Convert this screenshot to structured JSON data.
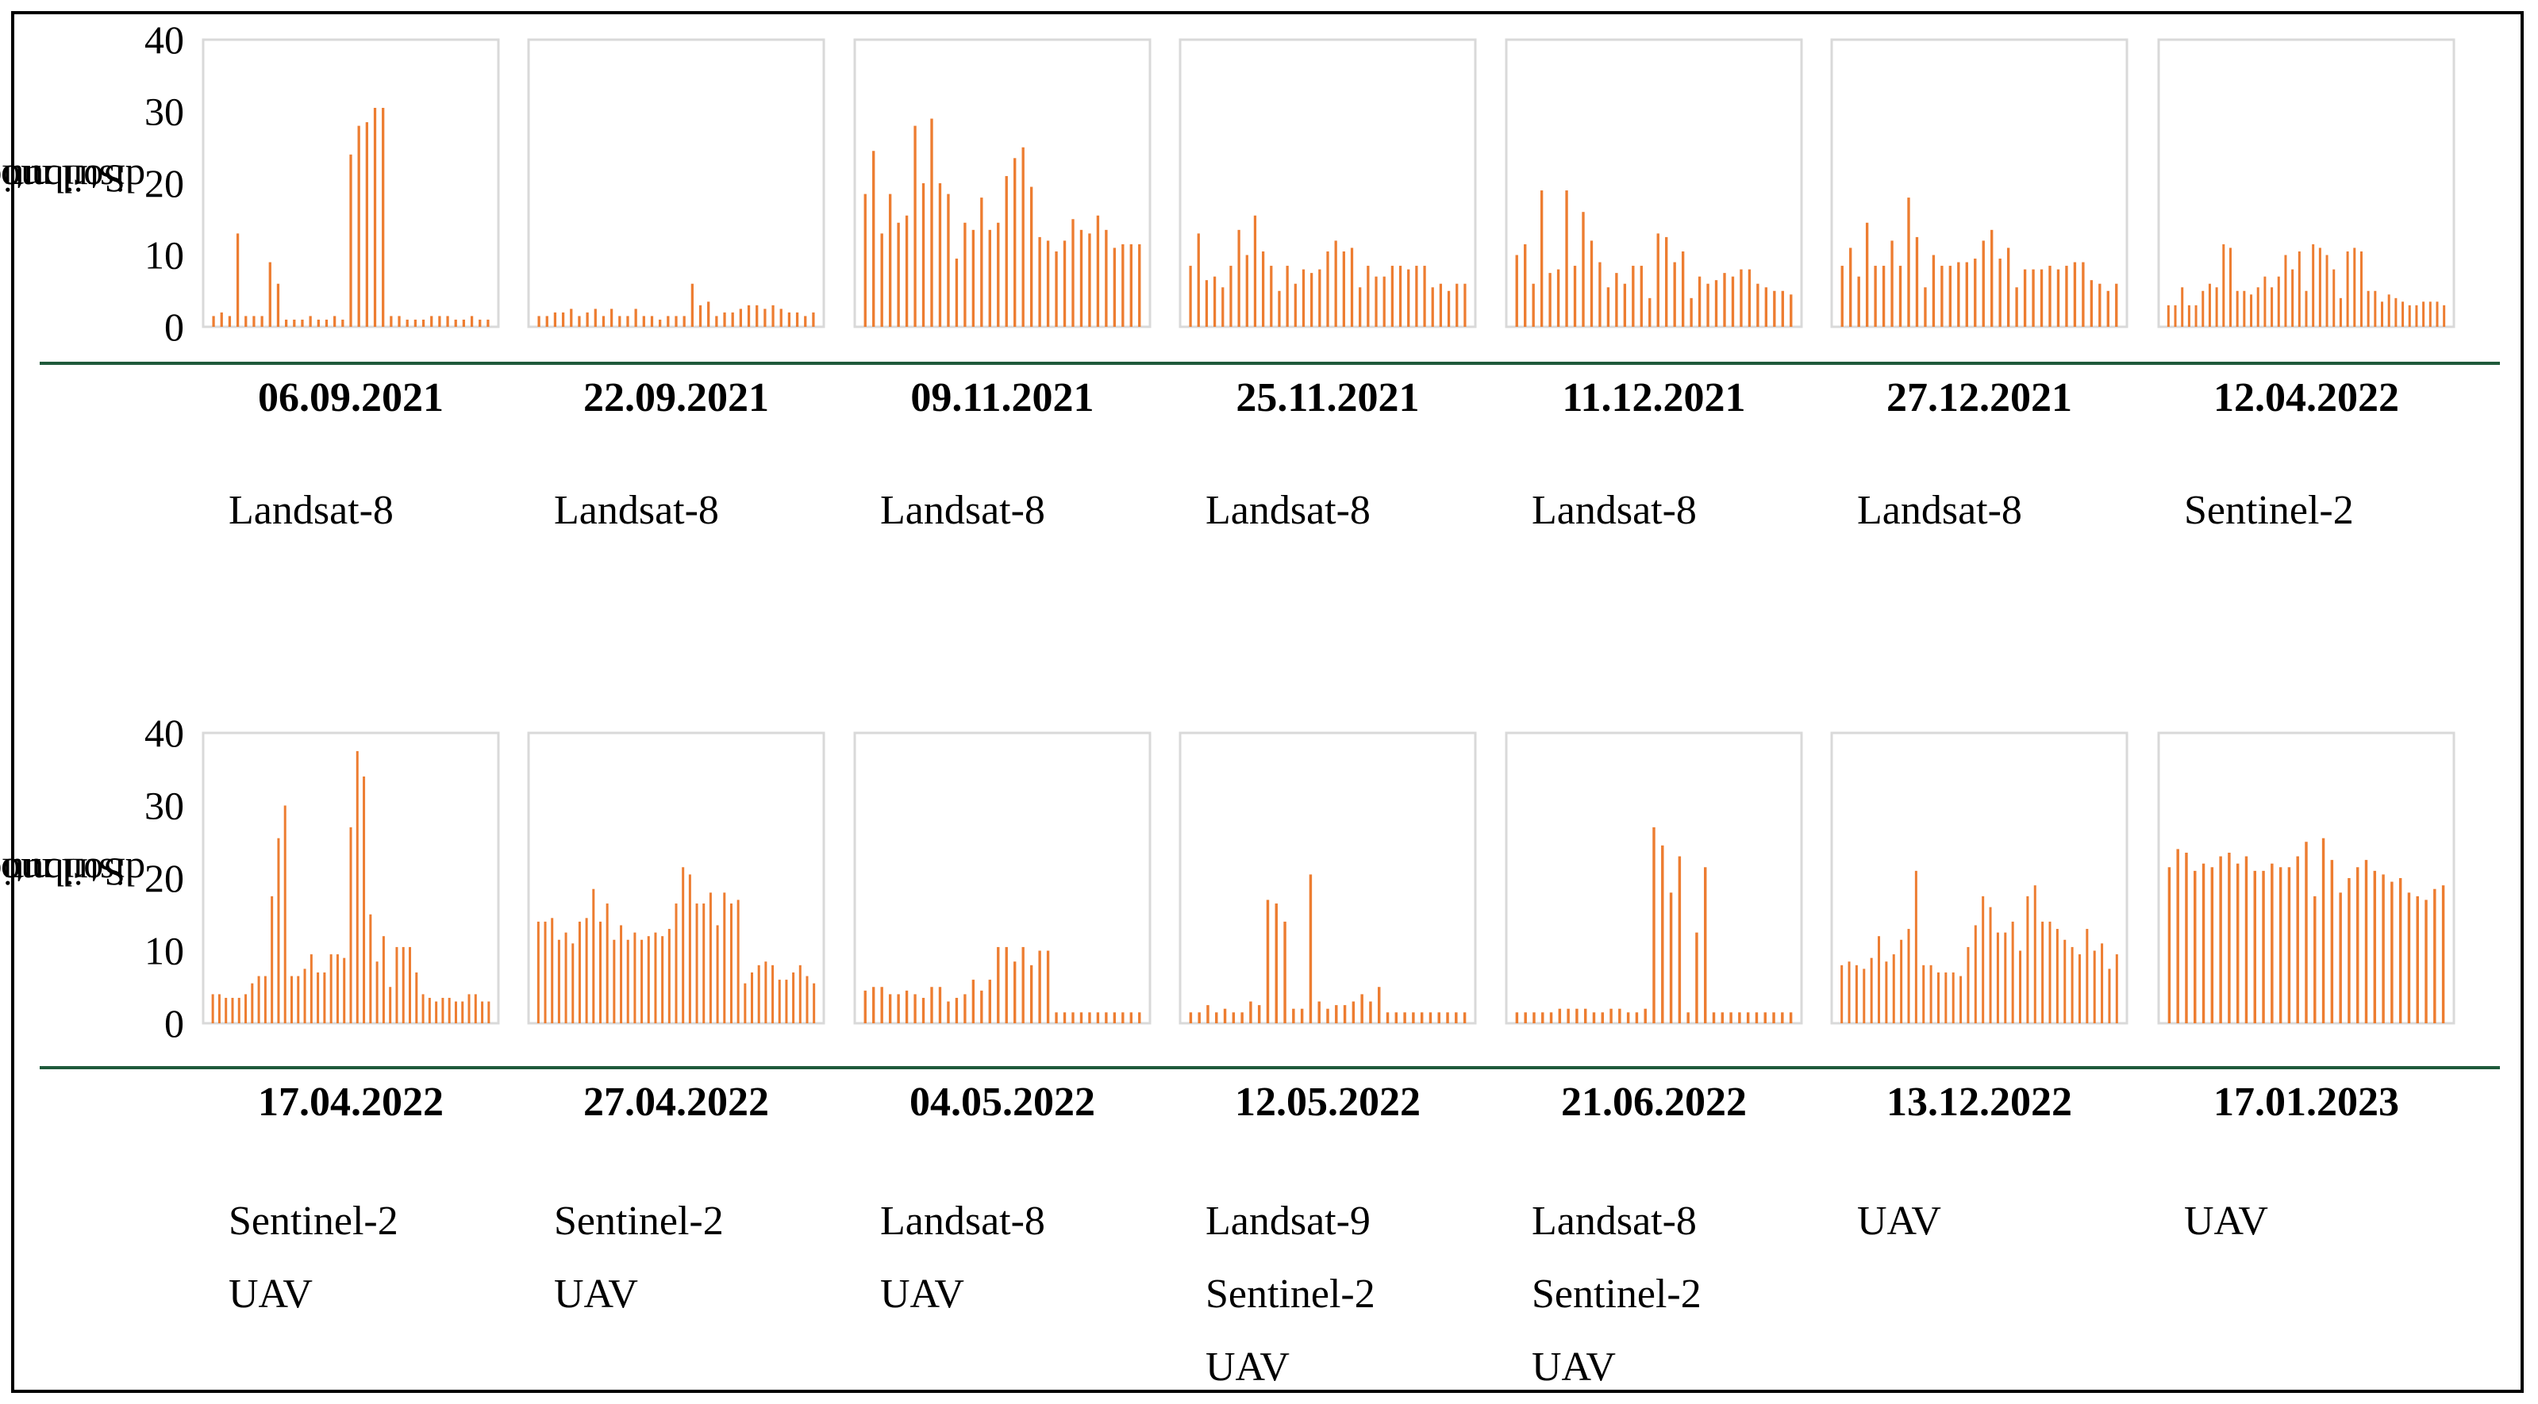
{
  "y_axis_label_line1": "Soil moisture",
  "y_axis_label_line2": "distribution (%)",
  "colors": {
    "bar": "#ed7d31",
    "separator": "#1f5a3b",
    "panel_border": "#d9d9d9"
  },
  "chart_data": {
    "type": "bar",
    "description_series": "Soil moisture distribution histograms per acquisition date",
    "ylabel": "Soil moisture distribution (%)",
    "ylim": [
      0,
      40
    ],
    "yticks": [
      "0",
      "10",
      "20",
      "30",
      "40"
    ],
    "panels": [
      {
        "date": "06.09.2021",
        "sensors": [
          "Landsat-8"
        ],
        "values": [
          1.5,
          2,
          1.5,
          13,
          1.5,
          1.5,
          1.5,
          9,
          6,
          1,
          1,
          1,
          1.5,
          1,
          1,
          1.5,
          1,
          24,
          28,
          28.5,
          30.5,
          30.5,
          1.5,
          1.5,
          1,
          1,
          1,
          1.5,
          1.5,
          1.5,
          1,
          1,
          1.5,
          1,
          1
        ]
      },
      {
        "date": "22.09.2021",
        "sensors": [
          "Landsat-8"
        ],
        "values": [
          1.5,
          1.5,
          2,
          2,
          2.5,
          1.5,
          2,
          2.5,
          1.5,
          2.5,
          1.5,
          1.5,
          2.5,
          1.5,
          1.5,
          1,
          1.5,
          1.5,
          1.5,
          6,
          3,
          3.5,
          1.5,
          2,
          2,
          2.5,
          3,
          3,
          2.5,
          3,
          2.5,
          2,
          2,
          1.5,
          2
        ]
      },
      {
        "date": "09.11.2021",
        "sensors": [
          "Landsat-8"
        ],
        "values": [
          18.5,
          24.5,
          13,
          18.5,
          14.5,
          15.5,
          28,
          20,
          29,
          20,
          18.5,
          9.5,
          14.5,
          13.5,
          18,
          13.5,
          14.5,
          21,
          23.5,
          25,
          19.5,
          12.5,
          12,
          10.5,
          12,
          15,
          13.5,
          13,
          15.5,
          13.5,
          11,
          11.5,
          11.5,
          11.5
        ]
      },
      {
        "date": "25.11.2021",
        "sensors": [
          "Landsat-8"
        ],
        "values": [
          8.5,
          13,
          6.5,
          7,
          5.5,
          8.5,
          13.5,
          10,
          15.5,
          10.5,
          8.5,
          5,
          8.5,
          6,
          8,
          7.5,
          8,
          10.5,
          12,
          10.5,
          11,
          5.5,
          8.5,
          7,
          7,
          8.5,
          8.5,
          8,
          8.5,
          8.5,
          5.5,
          6,
          5,
          6,
          6
        ]
      },
      {
        "date": "11.12.2021",
        "sensors": [
          "Landsat-8"
        ],
        "values": [
          10,
          11.5,
          6,
          19,
          7.5,
          8,
          19,
          8.5,
          16,
          12,
          9,
          5.5,
          7.5,
          6,
          8.5,
          8.5,
          4,
          13,
          12.5,
          9,
          10.5,
          4,
          7,
          6,
          6.5,
          7.5,
          7,
          8,
          8,
          6,
          5.5,
          5,
          5,
          4.5
        ]
      },
      {
        "date": "27.12.2021",
        "sensors": [
          "Landsat-8"
        ],
        "values": [
          8.5,
          11,
          7,
          14.5,
          8.5,
          8.5,
          12,
          8.5,
          18,
          12.5,
          5.5,
          10,
          8.5,
          8.5,
          9,
          9,
          9.5,
          12,
          13.5,
          9.5,
          11,
          5.5,
          8,
          8,
          8,
          8.5,
          8,
          8.5,
          9,
          9,
          6.5,
          6,
          5,
          6
        ]
      },
      {
        "date": "12.04.2022",
        "sensors": [
          "Sentinel-2"
        ],
        "values": [
          3,
          3,
          5.5,
          3,
          3,
          5,
          6,
          5.5,
          11.5,
          11,
          5,
          5,
          4.5,
          5.5,
          7,
          5.5,
          7,
          10,
          8,
          10.5,
          5,
          11.5,
          11,
          10,
          8,
          4,
          10.5,
          11,
          10.5,
          5,
          5,
          3.5,
          4.5,
          4,
          3.5,
          3,
          3,
          3.5,
          3.5,
          3.5,
          3
        ]
      },
      {
        "date": "17.04.2022",
        "sensors": [
          "Sentinel-2",
          "UAV"
        ],
        "values": [
          4,
          4,
          3.5,
          3.5,
          3.5,
          4,
          5.5,
          6.5,
          6.5,
          17.5,
          25.5,
          30,
          6.5,
          6.5,
          7.5,
          9.5,
          7,
          7,
          9.5,
          9.5,
          9,
          27,
          37.5,
          34,
          15,
          8.5,
          12,
          5,
          10.5,
          10.5,
          10.5,
          7,
          4,
          3.5,
          3,
          3.5,
          3.5,
          3,
          3,
          4,
          4,
          3,
          3
        ]
      },
      {
        "date": "27.04.2022",
        "sensors": [
          "Sentinel-2",
          "UAV"
        ],
        "values": [
          14,
          14,
          14.5,
          11.5,
          12.5,
          11,
          14,
          14.5,
          18.5,
          14,
          16.5,
          11.5,
          13.5,
          11.5,
          12.5,
          11.5,
          12,
          12.5,
          12,
          13,
          16.5,
          21.5,
          20.5,
          16.5,
          16.5,
          18,
          13.5,
          18,
          16.5,
          17,
          5.5,
          7,
          8,
          8.5,
          8,
          6,
          6,
          7,
          8,
          6.5,
          5.5
        ]
      },
      {
        "date": "04.05.2022",
        "sensors": [
          "Landsat-8",
          "UAV"
        ],
        "values": [
          4.5,
          5,
          5,
          4,
          4,
          4.5,
          4,
          3.5,
          5,
          5,
          3,
          3.5,
          4,
          6,
          4.5,
          6,
          10.5,
          10.5,
          8.5,
          10.5,
          8,
          10,
          10,
          1.5,
          1.5,
          1.5,
          1.5,
          1.5,
          1.5,
          1.5,
          1.5,
          1.5,
          1.5,
          1.5
        ]
      },
      {
        "date": "12.05.2022",
        "sensors": [
          "Landsat-9",
          "Sentinel-2",
          "UAV"
        ],
        "values": [
          1.5,
          1.5,
          2.5,
          1.5,
          2,
          1.5,
          1.5,
          3,
          2.5,
          17,
          16.5,
          14,
          2,
          2,
          20.5,
          3,
          2,
          2.5,
          2.5,
          3,
          4,
          3,
          5,
          1.5,
          1.5,
          1.5,
          1.5,
          1.5,
          1.5,
          1.5,
          1.5,
          1.5,
          1.5
        ]
      },
      {
        "date": "21.06.2022",
        "sensors": [
          "Landsat-8",
          "Sentinel-2",
          "UAV"
        ],
        "values": [
          1.5,
          1.5,
          1.5,
          1.5,
          1.5,
          2,
          2,
          2,
          2,
          1.5,
          1.5,
          2,
          2,
          1.5,
          1.5,
          2,
          27,
          24.5,
          18,
          23,
          1.5,
          12.5,
          21.5,
          1.5,
          1.5,
          1.5,
          1.5,
          1.5,
          1.5,
          1.5,
          1.5,
          1.5,
          1.5
        ]
      },
      {
        "date": "13.12.2022",
        "sensors": [
          "UAV"
        ],
        "values": [
          8,
          8.5,
          8,
          7.5,
          9,
          12,
          8.5,
          9.5,
          11.5,
          13,
          21,
          8,
          8,
          7,
          7,
          7,
          6.5,
          10.5,
          13.5,
          17.5,
          16,
          12.5,
          12.5,
          14,
          10,
          17.5,
          19,
          14,
          14,
          13,
          11.5,
          10.5,
          9.5,
          13,
          10,
          11,
          7.5,
          9.5
        ]
      },
      {
        "date": "17.01.2023",
        "sensors": [
          "UAV"
        ],
        "values": [
          21.5,
          24,
          23.5,
          21,
          22,
          21.5,
          23,
          23.5,
          22,
          23,
          21,
          21,
          22,
          21.5,
          21.5,
          23,
          25,
          17.5,
          25.5,
          22.5,
          18,
          20,
          21.5,
          22.5,
          21,
          20.5,
          19.5,
          20,
          18,
          17.5,
          17,
          18.5,
          19
        ]
      }
    ]
  }
}
